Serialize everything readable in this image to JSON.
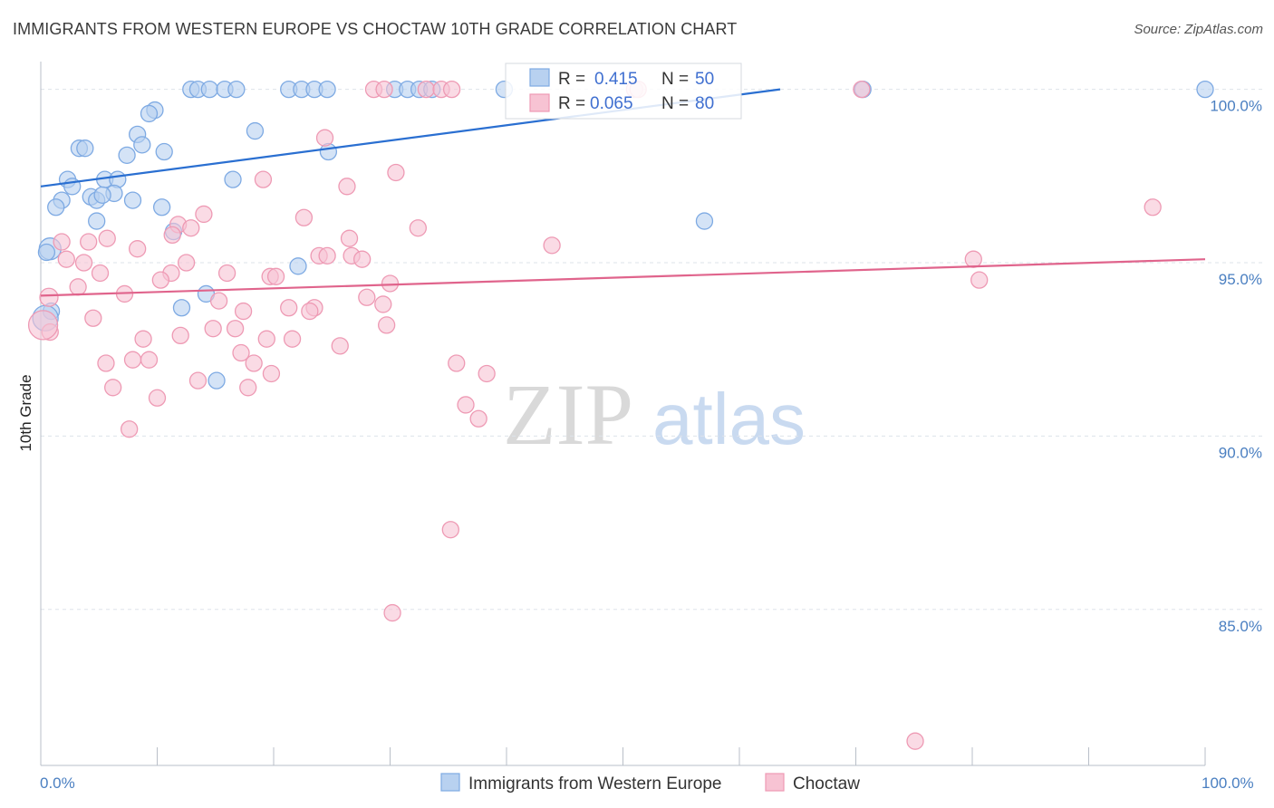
{
  "title": "IMMIGRANTS FROM WESTERN EUROPE VS CHOCTAW 10TH GRADE CORRELATION CHART",
  "source": "Source: ZipAtlas.com",
  "watermark": {
    "zip": "ZIP",
    "atlas": "atlas"
  },
  "colors": {
    "blue_fill": "#b8d1f0",
    "blue_stroke": "#7eaae3",
    "blue_line": "#2a6fd1",
    "pink_fill": "#f7c3d3",
    "pink_stroke": "#ee9ab4",
    "pink_line": "#e0648c",
    "tick_text": "#4a7fc1",
    "grid": "#dde3ea"
  },
  "legend": {
    "r_label": "R =",
    "n_label": "N =",
    "entries": [
      {
        "r": "0.415",
        "n": "50",
        "series": "blue"
      },
      {
        "r": "0.065",
        "n": "80",
        "series": "pink"
      }
    ]
  },
  "chart_data": {
    "type": "scatter",
    "title": "IMMIGRANTS FROM WESTERN EUROPE VS CHOCTAW 10TH GRADE CORRELATION CHART",
    "xlabel": "",
    "ylabel": "10th Grade",
    "xlim": [
      0,
      100
    ],
    "ylim": [
      80.5,
      100.8
    ],
    "x_tick_labels": [
      "0.0%",
      "100.0%"
    ],
    "y_ticks": [
      {
        "value": 100,
        "label": "100.0%"
      },
      {
        "value": 95,
        "label": "95.0%"
      },
      {
        "value": 90,
        "label": "90.0%"
      },
      {
        "value": 85,
        "label": "85.0%"
      }
    ],
    "series": [
      {
        "name": "Immigrants from Western Europe",
        "color": "blue",
        "r": 0.415,
        "n": 50,
        "trend": {
          "x0": 0,
          "y0": 97.2,
          "x1": 63.5,
          "y1": 100.0
        },
        "points": [
          [
            12.9,
            100
          ],
          [
            13.5,
            100
          ],
          [
            14.5,
            100
          ],
          [
            15.8,
            100
          ],
          [
            16.8,
            100
          ],
          [
            21.3,
            100
          ],
          [
            22.4,
            100
          ],
          [
            23.5,
            100
          ],
          [
            24.6,
            100
          ],
          [
            30.4,
            100
          ],
          [
            31.5,
            100
          ],
          [
            32.5,
            100
          ],
          [
            33.6,
            100
          ],
          [
            39.8,
            100
          ],
          [
            70.6,
            100
          ],
          [
            100,
            100
          ],
          [
            9.8,
            99.4
          ],
          [
            9.3,
            99.3
          ],
          [
            18.4,
            98.8
          ],
          [
            8.3,
            98.7
          ],
          [
            8.7,
            98.4
          ],
          [
            10.6,
            98.2
          ],
          [
            3.3,
            98.3
          ],
          [
            3.8,
            98.3
          ],
          [
            7.4,
            98.1
          ],
          [
            24.7,
            98.2
          ],
          [
            2.3,
            97.4
          ],
          [
            5.5,
            97.4
          ],
          [
            6.6,
            97.4
          ],
          [
            16.5,
            97.4
          ],
          [
            2.7,
            97.2
          ],
          [
            6.3,
            97.0
          ],
          [
            4.3,
            96.9
          ],
          [
            4.8,
            96.8
          ],
          [
            7.9,
            96.8
          ],
          [
            1.8,
            96.8
          ],
          [
            1.3,
            96.6
          ],
          [
            10.4,
            96.6
          ],
          [
            4.8,
            96.2
          ],
          [
            57.0,
            96.2
          ],
          [
            11.4,
            95.9
          ],
          [
            0.8,
            95.4
          ],
          [
            0.5,
            95.3
          ],
          [
            22.1,
            94.9
          ],
          [
            14.2,
            94.1
          ],
          [
            12.1,
            93.7
          ],
          [
            0.9,
            93.6
          ],
          [
            0.4,
            93.4
          ],
          [
            15.1,
            91.6
          ],
          [
            5.3,
            96.95
          ]
        ],
        "sizes": [
          9,
          9,
          9,
          9,
          9,
          9,
          9,
          9,
          9,
          9,
          9,
          9,
          9,
          9,
          9,
          9,
          9,
          9,
          9,
          9,
          9,
          9,
          9,
          9,
          9,
          9,
          9,
          9,
          9,
          9,
          9,
          9,
          9,
          9,
          9,
          9,
          9,
          9,
          9,
          9,
          9,
          12,
          9,
          9,
          9,
          9,
          9,
          14,
          9,
          9
        ]
      },
      {
        "name": "Choctaw",
        "color": "pink",
        "r": 0.065,
        "n": 80,
        "trend": {
          "x0": 0,
          "y0": 94.05,
          "x1": 100,
          "y1": 95.1
        },
        "points": [
          [
            28.6,
            100
          ],
          [
            29.5,
            100
          ],
          [
            33.1,
            100
          ],
          [
            34.4,
            100
          ],
          [
            35.3,
            100
          ],
          [
            51.0,
            100
          ],
          [
            51.3,
            100
          ],
          [
            70.5,
            100
          ],
          [
            24.4,
            98.6
          ],
          [
            30.5,
            97.6
          ],
          [
            19.1,
            97.4
          ],
          [
            26.3,
            97.2
          ],
          [
            95.5,
            96.6
          ],
          [
            14.0,
            96.4
          ],
          [
            22.6,
            96.3
          ],
          [
            11.8,
            96.1
          ],
          [
            12.9,
            96.0
          ],
          [
            32.4,
            96.0
          ],
          [
            11.3,
            95.8
          ],
          [
            26.5,
            95.7
          ],
          [
            1.8,
            95.6
          ],
          [
            4.1,
            95.6
          ],
          [
            5.7,
            95.7
          ],
          [
            43.9,
            95.5
          ],
          [
            8.3,
            95.4
          ],
          [
            23.9,
            95.2
          ],
          [
            24.6,
            95.2
          ],
          [
            26.7,
            95.2
          ],
          [
            27.6,
            95.1
          ],
          [
            2.2,
            95.1
          ],
          [
            3.7,
            95.0
          ],
          [
            12.5,
            95.0
          ],
          [
            80.1,
            95.1
          ],
          [
            5.1,
            94.7
          ],
          [
            11.2,
            94.7
          ],
          [
            16.0,
            94.7
          ],
          [
            19.7,
            94.6
          ],
          [
            20.2,
            94.6
          ],
          [
            10.3,
            94.5
          ],
          [
            30.0,
            94.4
          ],
          [
            80.6,
            94.5
          ],
          [
            3.2,
            94.3
          ],
          [
            7.2,
            94.1
          ],
          [
            0.7,
            94.0
          ],
          [
            28.0,
            94.0
          ],
          [
            15.3,
            93.9
          ],
          [
            29.4,
            93.8
          ],
          [
            21.3,
            93.7
          ],
          [
            23.5,
            93.7
          ],
          [
            17.4,
            93.6
          ],
          [
            23.1,
            93.6
          ],
          [
            4.5,
            93.4
          ],
          [
            29.7,
            93.2
          ],
          [
            14.8,
            93.1
          ],
          [
            16.7,
            93.1
          ],
          [
            12.0,
            92.9
          ],
          [
            8.8,
            92.8
          ],
          [
            19.4,
            92.8
          ],
          [
            21.6,
            92.8
          ],
          [
            25.7,
            92.6
          ],
          [
            0.8,
            93.0
          ],
          [
            17.2,
            92.4
          ],
          [
            7.9,
            92.2
          ],
          [
            9.3,
            92.2
          ],
          [
            5.6,
            92.1
          ],
          [
            18.3,
            92.1
          ],
          [
            35.7,
            92.1
          ],
          [
            19.8,
            91.8
          ],
          [
            38.3,
            91.8
          ],
          [
            13.5,
            91.6
          ],
          [
            6.2,
            91.4
          ],
          [
            17.8,
            91.4
          ],
          [
            10.0,
            91.1
          ],
          [
            36.5,
            90.9
          ],
          [
            37.6,
            90.5
          ],
          [
            7.6,
            90.2
          ],
          [
            35.2,
            87.3
          ],
          [
            30.2,
            84.9
          ],
          [
            75.1,
            81.2
          ],
          [
            0.2,
            93.2
          ]
        ],
        "sizes": [
          9,
          9,
          9,
          9,
          9,
          9,
          9,
          9,
          9,
          9,
          9,
          9,
          9,
          9,
          9,
          9,
          9,
          9,
          9,
          9,
          9,
          9,
          9,
          9,
          9,
          9,
          9,
          9,
          9,
          9,
          9,
          9,
          9,
          9,
          9,
          9,
          9,
          9,
          9,
          9,
          9,
          9,
          9,
          10,
          9,
          9,
          9,
          9,
          9,
          9,
          9,
          9,
          9,
          9,
          9,
          9,
          9,
          9,
          9,
          9,
          9,
          9,
          9,
          9,
          9,
          9,
          9,
          9,
          9,
          9,
          9,
          9,
          9,
          9,
          9,
          9,
          9,
          9,
          9,
          16
        ]
      }
    ],
    "legend_position": "bottom-center"
  }
}
